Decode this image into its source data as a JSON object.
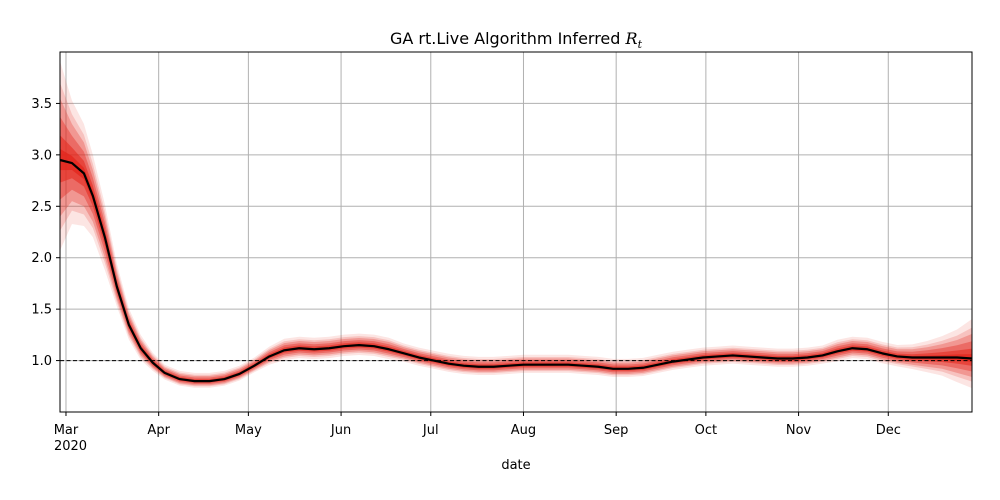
{
  "chart_data": {
    "type": "line",
    "title": "GA rt.Live Algorithm Inferred",
    "title_symbol": "R",
    "title_subscript": "t",
    "xlabel": "date",
    "ylabel": "",
    "grid": true,
    "x_range": [
      "2020-02-28",
      "2020-12-29"
    ],
    "ylim": [
      0.5,
      4.0
    ],
    "x_ticks": [
      {
        "date": "2020-03-01",
        "label": "Mar",
        "sublabel": "2020"
      },
      {
        "date": "2020-04-01",
        "label": "Apr"
      },
      {
        "date": "2020-05-01",
        "label": "May"
      },
      {
        "date": "2020-06-01",
        "label": "Jun"
      },
      {
        "date": "2020-07-01",
        "label": "Jul"
      },
      {
        "date": "2020-08-01",
        "label": "Aug"
      },
      {
        "date": "2020-09-01",
        "label": "Sep"
      },
      {
        "date": "2020-10-01",
        "label": "Oct"
      },
      {
        "date": "2020-11-01",
        "label": "Nov"
      },
      {
        "date": "2020-12-01",
        "label": "Dec"
      }
    ],
    "y_ticks": [
      1.0,
      1.5,
      2.0,
      2.5,
      3.0,
      3.5
    ],
    "y_tick_labels": [
      "1.0",
      "1.5",
      "2.0",
      "2.5",
      "3.0",
      "3.5"
    ],
    "reference_line": {
      "y": 1.0,
      "style": "dashed",
      "color": "#000000"
    },
    "series": [
      {
        "color": "#000000",
        "band_color": "#e3261c",
        "x": [
          "2020-02-28",
          "2020-03-03",
          "2020-03-07",
          "2020-03-10",
          "2020-03-14",
          "2020-03-18",
          "2020-03-22",
          "2020-03-26",
          "2020-03-30",
          "2020-04-03",
          "2020-04-08",
          "2020-04-13",
          "2020-04-18",
          "2020-04-23",
          "2020-04-28",
          "2020-05-03",
          "2020-05-08",
          "2020-05-13",
          "2020-05-18",
          "2020-05-23",
          "2020-05-28",
          "2020-06-02",
          "2020-06-07",
          "2020-06-12",
          "2020-06-17",
          "2020-06-22",
          "2020-06-27",
          "2020-07-02",
          "2020-07-07",
          "2020-07-12",
          "2020-07-17",
          "2020-07-22",
          "2020-07-27",
          "2020-08-01",
          "2020-08-06",
          "2020-08-11",
          "2020-08-16",
          "2020-08-21",
          "2020-08-26",
          "2020-08-31",
          "2020-09-05",
          "2020-09-10",
          "2020-09-15",
          "2020-09-20",
          "2020-09-25",
          "2020-09-30",
          "2020-10-05",
          "2020-10-10",
          "2020-10-15",
          "2020-10-20",
          "2020-10-25",
          "2020-10-30",
          "2020-11-04",
          "2020-11-09",
          "2020-11-14",
          "2020-11-19",
          "2020-11-24",
          "2020-11-29",
          "2020-12-04",
          "2020-12-09",
          "2020-12-14",
          "2020-12-19",
          "2020-12-24",
          "2020-12-29"
        ],
        "y": [
          2.95,
          2.92,
          2.82,
          2.6,
          2.2,
          1.72,
          1.35,
          1.12,
          0.98,
          0.88,
          0.82,
          0.8,
          0.8,
          0.82,
          0.87,
          0.95,
          1.04,
          1.1,
          1.12,
          1.11,
          1.12,
          1.14,
          1.15,
          1.14,
          1.11,
          1.07,
          1.03,
          1.0,
          0.97,
          0.95,
          0.94,
          0.94,
          0.95,
          0.96,
          0.96,
          0.96,
          0.96,
          0.95,
          0.94,
          0.92,
          0.92,
          0.93,
          0.96,
          0.99,
          1.01,
          1.03,
          1.04,
          1.05,
          1.04,
          1.03,
          1.02,
          1.02,
          1.03,
          1.05,
          1.09,
          1.12,
          1.11,
          1.07,
          1.04,
          1.03,
          1.03,
          1.03,
          1.03,
          1.02
        ],
        "band_lower": [
          2.4,
          2.55,
          2.5,
          2.35,
          2.0,
          1.6,
          1.26,
          1.05,
          0.93,
          0.84,
          0.78,
          0.76,
          0.76,
          0.78,
          0.83,
          0.91,
          0.99,
          1.04,
          1.06,
          1.05,
          1.06,
          1.08,
          1.09,
          1.08,
          1.05,
          1.02,
          0.98,
          0.95,
          0.92,
          0.9,
          0.89,
          0.89,
          0.9,
          0.91,
          0.91,
          0.91,
          0.91,
          0.9,
          0.89,
          0.87,
          0.87,
          0.88,
          0.91,
          0.94,
          0.96,
          0.98,
          0.99,
          1.0,
          0.99,
          0.98,
          0.97,
          0.97,
          0.98,
          1.0,
          1.03,
          1.06,
          1.05,
          1.01,
          0.98,
          0.96,
          0.94,
          0.92,
          0.88,
          0.84
        ],
        "band_upper": [
          3.55,
          3.3,
          3.12,
          2.85,
          2.4,
          1.86,
          1.45,
          1.2,
          1.04,
          0.93,
          0.87,
          0.85,
          0.85,
          0.87,
          0.92,
          1.0,
          1.1,
          1.17,
          1.19,
          1.18,
          1.19,
          1.21,
          1.22,
          1.21,
          1.18,
          1.13,
          1.09,
          1.06,
          1.03,
          1.01,
          1.0,
          1.0,
          1.01,
          1.02,
          1.02,
          1.02,
          1.02,
          1.01,
          1.0,
          0.98,
          0.98,
          0.99,
          1.02,
          1.05,
          1.07,
          1.09,
          1.1,
          1.11,
          1.1,
          1.09,
          1.08,
          1.08,
          1.09,
          1.11,
          1.16,
          1.19,
          1.18,
          1.14,
          1.11,
          1.11,
          1.13,
          1.16,
          1.2,
          1.26
        ]
      }
    ]
  }
}
